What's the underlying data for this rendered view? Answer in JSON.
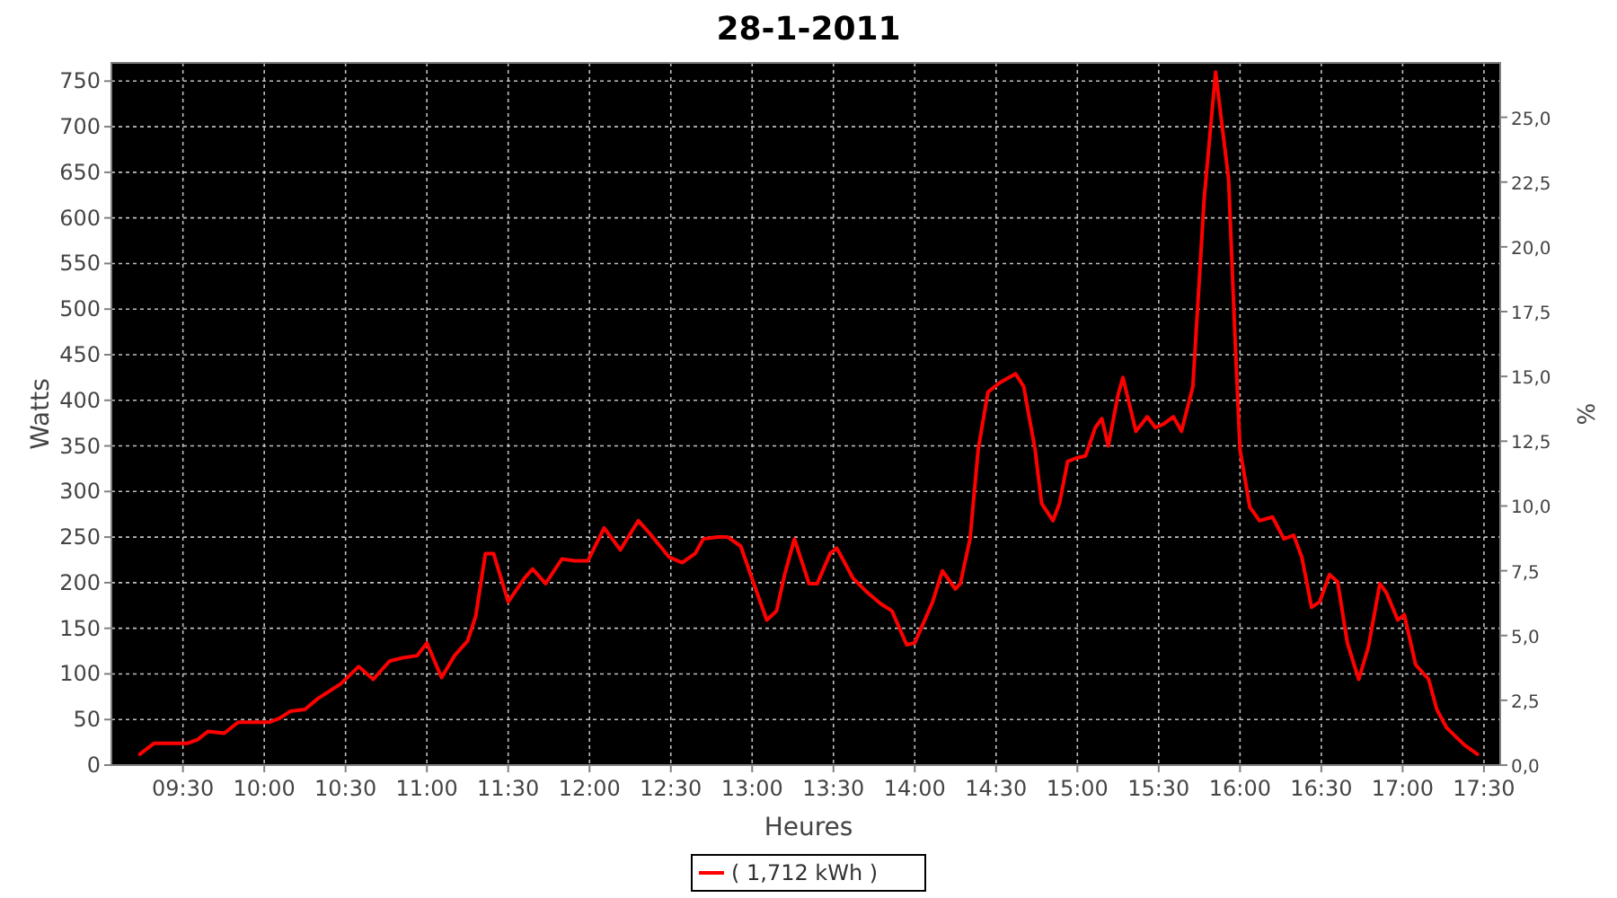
{
  "chart_data": {
    "type": "line",
    "title": "28-1-2011",
    "xlabel": "Heures",
    "ylabel": "Watts",
    "y2label": "%",
    "x": [
      9.235,
      9.323,
      9.42,
      9.53,
      9.59,
      9.655,
      9.754,
      9.84,
      9.92,
      10.03,
      10.09,
      10.16,
      10.25,
      10.33,
      10.47,
      10.58,
      10.67,
      10.77,
      10.86,
      10.94,
      11.0,
      11.09,
      11.17,
      11.25,
      11.3,
      11.36,
      11.41,
      11.5,
      11.6,
      11.65,
      11.73,
      11.83,
      11.91,
      11.99,
      12.09,
      12.19,
      12.3,
      12.37,
      12.49,
      12.57,
      12.65,
      12.7,
      12.79,
      12.85,
      12.93,
      13.01,
      13.09,
      13.15,
      13.2,
      13.26,
      13.35,
      13.4,
      13.48,
      13.52,
      13.62,
      13.71,
      13.79,
      13.86,
      13.95,
      14.0,
      14.11,
      14.17,
      14.25,
      14.28,
      14.34,
      14.39,
      14.45,
      14.52,
      14.62,
      14.67,
      14.74,
      14.78,
      14.85,
      14.89,
      14.94,
      15.0,
      15.05,
      15.11,
      15.15,
      15.19,
      15.25,
      15.28,
      15.36,
      15.43,
      15.48,
      15.53,
      15.59,
      15.64,
      15.71,
      15.78,
      15.85,
      15.93,
      15.97,
      16.0,
      16.06,
      16.12,
      16.2,
      16.27,
      16.33,
      16.38,
      16.44,
      16.49,
      16.55,
      16.6,
      16.66,
      16.73,
      16.79,
      16.86,
      16.9,
      16.97,
      17.01,
      17.08,
      17.16,
      17.21,
      17.27,
      17.38,
      17.46
    ],
    "series": [
      {
        "name": "( 1,712 kWh )",
        "color": "#ff0000",
        "values": [
          12,
          24,
          24,
          24,
          28,
          37,
          35,
          47,
          47,
          47,
          51,
          59,
          61,
          73,
          89,
          108,
          94,
          114,
          118,
          120,
          134,
          96,
          120,
          136,
          163,
          232,
          232,
          179,
          205,
          215,
          199,
          226,
          224,
          224,
          260,
          236,
          268,
          254,
          228,
          222,
          232,
          248,
          250,
          250,
          240,
          199,
          159,
          169,
          209,
          248,
          199,
          199,
          232,
          238,
          205,
          189,
          177,
          169,
          132,
          134,
          179,
          213,
          193,
          199,
          248,
          346,
          409,
          419,
          429,
          415,
          346,
          287,
          268,
          287,
          333,
          337,
          339,
          370,
          380,
          350,
          406,
          425,
          366,
          382,
          370,
          374,
          382,
          366,
          415,
          622,
          760,
          642,
          465,
          346,
          283,
          268,
          272,
          248,
          252,
          228,
          173,
          179,
          209,
          201,
          134,
          94,
          130,
          199,
          189,
          159,
          165,
          110,
          94,
          61,
          41,
          22,
          12
        ]
      }
    ],
    "xlim": [
      9.06,
      17.6
    ],
    "ylim": [
      0,
      770
    ],
    "y2lim": [
      0,
      27.1
    ],
    "xticks": [
      {
        "value": 9.5,
        "label": "09:30"
      },
      {
        "value": 10,
        "label": "10:00"
      },
      {
        "value": 10.5,
        "label": "10:30"
      },
      {
        "value": 11,
        "label": "11:00"
      },
      {
        "value": 11.5,
        "label": "11:30"
      },
      {
        "value": 12,
        "label": "12:00"
      },
      {
        "value": 12.5,
        "label": "12:30"
      },
      {
        "value": 13,
        "label": "13:00"
      },
      {
        "value": 13.5,
        "label": "13:30"
      },
      {
        "value": 14,
        "label": "14:00"
      },
      {
        "value": 14.5,
        "label": "14:30"
      },
      {
        "value": 15,
        "label": "15:00"
      },
      {
        "value": 15.5,
        "label": "15:30"
      },
      {
        "value": 16,
        "label": "16:00"
      },
      {
        "value": 16.5,
        "label": "16:30"
      },
      {
        "value": 17,
        "label": "17:00"
      },
      {
        "value": 17.5,
        "label": "17:30"
      }
    ],
    "yticks": [
      0,
      50,
      100,
      150,
      200,
      250,
      300,
      350,
      400,
      450,
      500,
      550,
      600,
      650,
      700,
      750
    ],
    "y2ticks": [
      {
        "value": 0,
        "label": "0,0"
      },
      {
        "value": 2.5,
        "label": "2,5"
      },
      {
        "value": 5,
        "label": "5,0"
      },
      {
        "value": 7.5,
        "label": "7,5"
      },
      {
        "value": 10,
        "label": "10,0"
      },
      {
        "value": 12.5,
        "label": "12,5"
      },
      {
        "value": 15,
        "label": "15,0"
      },
      {
        "value": 17.5,
        "label": "17,5"
      },
      {
        "value": 20,
        "label": "20,0"
      },
      {
        "value": 22.5,
        "label": "22,5"
      },
      {
        "value": 25,
        "label": "25,0"
      }
    ],
    "grid": true,
    "legend": "bottom",
    "marker": "none",
    "line_style": "solid"
  }
}
